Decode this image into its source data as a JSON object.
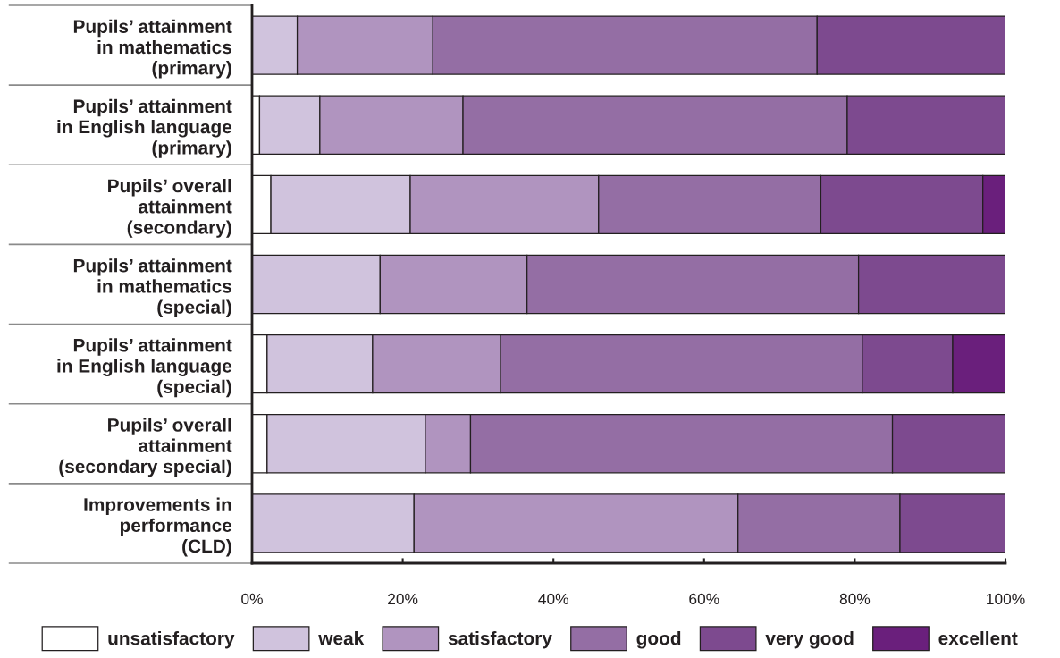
{
  "chart_data": {
    "type": "bar",
    "orientation": "horizontal",
    "stacked": true,
    "categories": [
      "Pupils’ attainment\nin mathematics\n(primary)",
      "Pupils’ attainment\nin English language\n(primary)",
      "Pupils’ overall\nattainment\n(secondary)",
      "Pupils’ attainment\nin mathematics\n(special)",
      "Pupils’ attainment\nin English language\n(special)",
      "Pupils’ overall\nattainment\n(secondary special)",
      "Improvements in\nperformance\n(CLD)"
    ],
    "series": [
      {
        "name": "unsatisfactory",
        "color": "#ffffff",
        "values": [
          0,
          1,
          2.5,
          0,
          2,
          2,
          0
        ]
      },
      {
        "name": "weak",
        "color": "#d0c3dd",
        "values": [
          6,
          8,
          18.5,
          17,
          14,
          21,
          21.5
        ]
      },
      {
        "name": "satisfactory",
        "color": "#b094bf",
        "values": [
          18,
          19,
          25,
          19.5,
          17,
          6,
          43
        ]
      },
      {
        "name": "good",
        "color": "#946ea4",
        "values": [
          51,
          51,
          29.5,
          44,
          48,
          56,
          21.5
        ]
      },
      {
        "name": "very good",
        "color": "#7d4a8f",
        "values": [
          25,
          21,
          21.5,
          19.5,
          12,
          15,
          14
        ]
      },
      {
        "name": "excellent",
        "color": "#6a1f7c",
        "values": [
          0,
          0,
          3,
          0,
          7,
          0,
          0
        ]
      }
    ],
    "xlim": [
      0,
      100
    ],
    "xticks": [
      {
        "value": 0,
        "label": "0%"
      },
      {
        "value": 20,
        "label": "20%"
      },
      {
        "value": 40,
        "label": "40%"
      },
      {
        "value": 60,
        "label": "60%"
      },
      {
        "value": 80,
        "label": "80%"
      },
      {
        "value": 100,
        "label": "100%"
      }
    ],
    "legend": "bottom"
  }
}
